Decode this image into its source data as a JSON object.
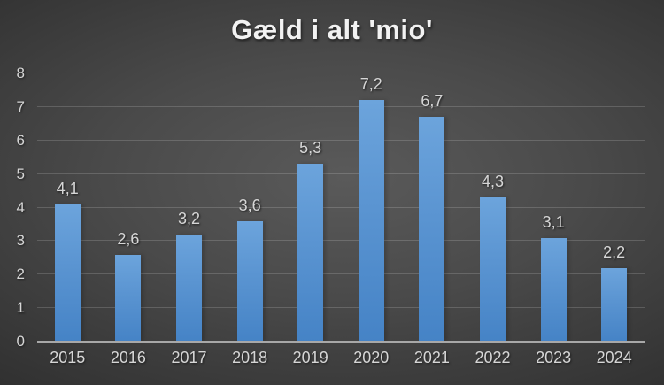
{
  "title": "Gæld i alt 'mio'",
  "colors": {
    "background_center": "#5a5a5a",
    "background_edge": "#252525",
    "bar_top": "#6ca4dc",
    "bar_bottom": "#4583c6",
    "gridline": "rgba(255,255,255,0.16)",
    "axis_line": "#a8a8a8",
    "tick_label": "#d6d6d6",
    "data_label": "#dcdcdc",
    "title_color": "#f2f2f2"
  },
  "chart_data": {
    "type": "bar",
    "title": "Gæld i alt 'mio'",
    "categories": [
      "2015",
      "2016",
      "2017",
      "2018",
      "2019",
      "2020",
      "2021",
      "2022",
      "2023",
      "2024"
    ],
    "values": [
      4.1,
      2.6,
      3.2,
      3.6,
      5.3,
      7.2,
      6.7,
      4.3,
      3.1,
      2.2
    ],
    "value_labels": [
      "4,1",
      "2,6",
      "3,2",
      "3,6",
      "5,3",
      "7,2",
      "6,7",
      "4,3",
      "3,1",
      "2,2"
    ],
    "xlabel": "",
    "ylabel": "",
    "ylim": [
      0,
      8
    ],
    "y_ticks": [
      0,
      1,
      2,
      3,
      4,
      5,
      6,
      7,
      8
    ],
    "grid": true,
    "legend": "none",
    "decimal_separator": ","
  }
}
